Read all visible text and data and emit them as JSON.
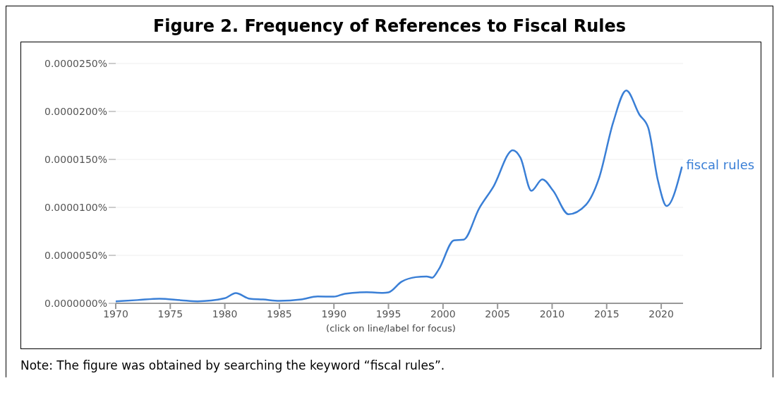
{
  "chart_data": {
    "type": "line",
    "title": "Figure 2. Frequency of References to Fiscal Rules",
    "x": [
      1970,
      1972,
      1974,
      1976,
      1977.5,
      1980,
      1981,
      1982.3,
      1983.5,
      1985,
      1987,
      1988.5,
      1990,
      1991,
      1993,
      1994.5,
      1995,
      1996.2,
      1997.5,
      1998.5,
      1999,
      1999.6,
      2001,
      2001.9,
      2003.3,
      2004.6,
      2006.4,
      2007.1,
      2008.1,
      2009.1,
      2010.1,
      2011.5,
      2013.1,
      2014.3,
      2015.6,
      2016.8,
      2018,
      2018.8,
      2019.7,
      2020.5,
      2021.9
    ],
    "series": [
      {
        "name": "fiscal rules",
        "color": "#3a7fd6",
        "values": [
          2.1e-07,
          3.4e-07,
          4.8e-07,
          3.2e-07,
          2.1e-07,
          5.3e-07,
          1.06e-06,
          4.8e-07,
          4e-07,
          2.6e-07,
          4e-07,
          7.1e-07,
          6.9e-07,
          1e-06,
          1.16e-06,
          1.09e-06,
          1.14e-06,
          2.25e-06,
          2.73e-06,
          2.8e-06,
          2.67e-06,
          3.52e-06,
          6.56e-06,
          6.64e-06,
          9.87e-06,
          1.212e-05,
          1.596e-05,
          1.517e-05,
          1.173e-05,
          1.292e-05,
          1.173e-05,
          9.29e-06,
          1.027e-05,
          1.305e-05,
          1.887e-05,
          2.218e-05,
          1.967e-05,
          1.834e-05,
          1.279e-05,
          1.014e-05,
          1.424e-05
        ]
      }
    ],
    "xlim": [
      1970,
      2022
    ],
    "xticks": [
      1970,
      1975,
      1980,
      1985,
      1990,
      1995,
      2000,
      2005,
      2010,
      2015,
      2020
    ],
    "ylim": [
      0,
      2.5e-05
    ],
    "yticks": [
      {
        "value": 0,
        "label": "0.0000000%"
      },
      {
        "value": 5e-06,
        "label": "0.0000050%"
      },
      {
        "value": 1e-05,
        "label": "0.0000100%"
      },
      {
        "value": 1.5e-05,
        "label": "0.0000150%"
      },
      {
        "value": 2e-05,
        "label": "0.0000200%"
      },
      {
        "value": 2.5e-05,
        "label": "0.0000250%"
      }
    ],
    "grid": "y",
    "annotations": [
      "(click on line/label for focus)",
      "Note: The figure was obtained by searching the keyword “fiscal rules”."
    ]
  }
}
